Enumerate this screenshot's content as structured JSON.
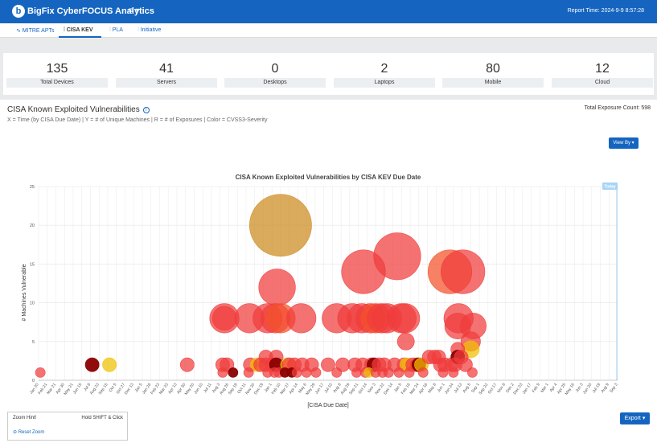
{
  "app": {
    "title": "BigFix CyberFOCUS Analytics",
    "logo_letter": "b",
    "menu_glyph": "≡ ▾",
    "report_time": "Report Time: 2024-9-9 8:57:28"
  },
  "tabs": [
    {
      "label": "∿ MITRE APTs",
      "active": false
    },
    {
      "label": "⫶ CISA KEV",
      "active": true
    },
    {
      "label": "⫶ PLA",
      "active": false
    },
    {
      "label": "⫶ Initiative",
      "active": false
    }
  ],
  "stats": [
    {
      "value": "135",
      "label": "Total Devices"
    },
    {
      "value": "41",
      "label": "Servers"
    },
    {
      "value": "0",
      "label": "Desktops"
    },
    {
      "value": "2",
      "label": "Laptops"
    },
    {
      "value": "80",
      "label": "Mobile"
    },
    {
      "value": "12",
      "label": "Cloud"
    }
  ],
  "panel": {
    "title": "CISA Known Exploited Vulnerabilities",
    "info_glyph": "i",
    "subtitle": "X = Time (by CISA Due Date) | Y = # of Unique Machines | R = # of Exposures | Color = CVSS3-Severity",
    "exposure_label": "Total Exposure Count:",
    "exposure_value": "598",
    "view_by": "View By ▾"
  },
  "zoom": {
    "title": "Zoom Hint!",
    "shift": "Hold SHIFT & Click",
    "reset": "⊖ Reset Zoom"
  },
  "export": "Export ▾",
  "chart_data": {
    "type": "scatter",
    "title": "CISA Known Exploited Vulnerabilities by CISA KEV Due Date",
    "xlabel": "[CISA Due Date]",
    "ylabel": "# Machines Vulnerable",
    "today_label": "Today",
    "ylim": [
      0,
      25
    ],
    "yticks": [
      0,
      5,
      10,
      15,
      20,
      25
    ],
    "grid": true,
    "categories": [
      "Jan 20",
      "Feb 21",
      "Mar 21",
      "Apr 30",
      "May 21",
      "Jun 15",
      "Jul 8",
      "Aug 23",
      "Sep 15",
      "Oct 5",
      "Oct 27",
      "Dec 13",
      "Jan 5",
      "Jan 26",
      "Feb 23",
      "Mar 23",
      "Apr 13",
      "Apr 30",
      "May 20",
      "Jun 10",
      "Jul 11",
      "Aug 3",
      "Aug 26",
      "Sep 18",
      "Oct 11",
      "Nov 20",
      "Dec 19",
      "Jan 1",
      "Feb 10",
      "Mar 27",
      "Apr 14",
      "May 6",
      "May 29",
      "Jun 17",
      "Jul 10",
      "Aug 8",
      "Aug 29",
      "Sep 21",
      "Oct 14",
      "Nov 3",
      "Nov 22",
      "Dec 14",
      "Jan 5",
      "Feb 16",
      "Mar 24",
      "Apr 16",
      "May 8",
      "Jun 1",
      "Jun 24",
      "Jul 13",
      "Aug 5",
      "Sep 1",
      "Sep 22",
      "Oct 17",
      "Nov 8",
      "Dec 2",
      "Dec 23",
      "Jan 17",
      "Feb 9",
      "Mar 1",
      "Apr 4",
      "Apr 25",
      "May 16",
      "Jun 3",
      "Jun 20",
      "Jul 19",
      "Aug 9",
      "Sep 3"
    ],
    "colors": {
      "critical": "#f03c3c",
      "critical_alt": "#f4502a",
      "high": "#cc8a1e",
      "medium": "#f0c000",
      "dark": "#8b0000"
    },
    "points": [
      {
        "x": 0.2,
        "y": 1,
        "r": 1,
        "c": "critical"
      },
      {
        "x": 6.2,
        "y": 2,
        "r": 2,
        "c": "dark"
      },
      {
        "x": 8.2,
        "y": 2,
        "r": 2,
        "c": "medium"
      },
      {
        "x": 17.2,
        "y": 2,
        "r": 2,
        "c": "critical"
      },
      {
        "x": 21.5,
        "y": 8,
        "r": 9,
        "c": "critical"
      },
      {
        "x": 21.5,
        "y": 8,
        "r": 6,
        "c": "critical"
      },
      {
        "x": 21.3,
        "y": 2,
        "r": 2,
        "c": "critical"
      },
      {
        "x": 21.8,
        "y": 2,
        "r": 2,
        "c": "critical"
      },
      {
        "x": 21.3,
        "y": 1,
        "r": 1,
        "c": "critical"
      },
      {
        "x": 22.5,
        "y": 1,
        "r": 1,
        "c": "dark"
      },
      {
        "x": 24.4,
        "y": 8,
        "r": 9,
        "c": "critical"
      },
      {
        "x": 24.5,
        "y": 2,
        "r": 2,
        "c": "critical"
      },
      {
        "x": 24.3,
        "y": 1,
        "r": 1,
        "c": "critical"
      },
      {
        "x": 25.3,
        "y": 2,
        "r": 2,
        "c": "medium"
      },
      {
        "x": 25.7,
        "y": 2,
        "r": 2,
        "c": "critical"
      },
      {
        "x": 26.5,
        "y": 8,
        "r": 9,
        "c": "critical"
      },
      {
        "x": 26.3,
        "y": 3,
        "r": 2,
        "c": "critical"
      },
      {
        "x": 26.3,
        "y": 2,
        "r": 2,
        "c": "critical"
      },
      {
        "x": 26.5,
        "y": 1,
        "r": 1,
        "c": "critical"
      },
      {
        "x": 27.0,
        "y": 2,
        "r": 2,
        "c": "critical"
      },
      {
        "x": 27.4,
        "y": 8,
        "r": 9,
        "c": "critical"
      },
      {
        "x": 27.6,
        "y": 12,
        "r": 14,
        "c": "critical"
      },
      {
        "x": 28.0,
        "y": 8,
        "r": 9,
        "c": "critical_alt"
      },
      {
        "x": 27.5,
        "y": 3,
        "r": 2,
        "c": "critical"
      },
      {
        "x": 27.5,
        "y": 2,
        "r": 2,
        "c": "dark"
      },
      {
        "x": 27.3,
        "y": 1,
        "r": 1,
        "c": "critical"
      },
      {
        "x": 27.8,
        "y": 1,
        "r": 1,
        "c": "critical"
      },
      {
        "x": 28.0,
        "y": 20,
        "r": 40,
        "c": "high"
      },
      {
        "x": 28.5,
        "y": 1,
        "r": 1,
        "c": "dark"
      },
      {
        "x": 28.8,
        "y": 2,
        "r": 2,
        "c": "medium"
      },
      {
        "x": 29.0,
        "y": 2,
        "r": 2,
        "c": "critical"
      },
      {
        "x": 29.3,
        "y": 1,
        "r": 1,
        "c": "dark"
      },
      {
        "x": 29.6,
        "y": 2,
        "r": 2,
        "c": "critical"
      },
      {
        "x": 29.9,
        "y": 1,
        "r": 1,
        "c": "critical"
      },
      {
        "x": 30.4,
        "y": 8,
        "r": 9,
        "c": "critical"
      },
      {
        "x": 30.5,
        "y": 2,
        "r": 2,
        "c": "critical"
      },
      {
        "x": 31.0,
        "y": 1,
        "r": 1,
        "c": "critical"
      },
      {
        "x": 31.6,
        "y": 2,
        "r": 2,
        "c": "critical"
      },
      {
        "x": 32.1,
        "y": 1,
        "r": 1,
        "c": "critical"
      },
      {
        "x": 33.5,
        "y": 2,
        "r": 2,
        "c": "critical"
      },
      {
        "x": 34.5,
        "y": 8,
        "r": 9,
        "c": "critical"
      },
      {
        "x": 34.5,
        "y": 1,
        "r": 1,
        "c": "critical"
      },
      {
        "x": 35.2,
        "y": 2,
        "r": 2,
        "c": "critical"
      },
      {
        "x": 36.3,
        "y": 8,
        "r": 9,
        "c": "critical"
      },
      {
        "x": 36.6,
        "y": 2,
        "r": 2,
        "c": "critical"
      },
      {
        "x": 36.8,
        "y": 1,
        "r": 1,
        "c": "critical"
      },
      {
        "x": 37.4,
        "y": 8,
        "r": 9,
        "c": "critical"
      },
      {
        "x": 37.6,
        "y": 14,
        "r": 20,
        "c": "critical"
      },
      {
        "x": 37.5,
        "y": 2,
        "r": 2,
        "c": "critical"
      },
      {
        "x": 37.8,
        "y": 1,
        "r": 1,
        "c": "critical"
      },
      {
        "x": 38.2,
        "y": 1,
        "r": 1,
        "c": "medium"
      },
      {
        "x": 38.4,
        "y": 8,
        "r": 9,
        "c": "critical"
      },
      {
        "x": 38.5,
        "y": 2,
        "r": 2,
        "c": "critical"
      },
      {
        "x": 38.8,
        "y": 2,
        "r": 2,
        "c": "dark"
      },
      {
        "x": 39.0,
        "y": 8,
        "r": 9,
        "c": "critical_alt"
      },
      {
        "x": 39.0,
        "y": 1,
        "r": 1,
        "c": "critical"
      },
      {
        "x": 39.4,
        "y": 2,
        "r": 2,
        "c": "critical"
      },
      {
        "x": 39.7,
        "y": 8,
        "r": 9,
        "c": "critical"
      },
      {
        "x": 39.8,
        "y": 1,
        "r": 1,
        "c": "critical"
      },
      {
        "x": 40.0,
        "y": 2,
        "r": 2,
        "c": "critical"
      },
      {
        "x": 40.3,
        "y": 8,
        "r": 9,
        "c": "critical"
      },
      {
        "x": 40.5,
        "y": 1,
        "r": 1,
        "c": "critical"
      },
      {
        "x": 41.2,
        "y": 2,
        "r": 2,
        "c": "critical"
      },
      {
        "x": 41.5,
        "y": 16,
        "r": 23,
        "c": "critical"
      },
      {
        "x": 41.7,
        "y": 1,
        "r": 1,
        "c": "critical"
      },
      {
        "x": 42.0,
        "y": 8,
        "r": 9,
        "c": "critical"
      },
      {
        "x": 42.4,
        "y": 8,
        "r": 9,
        "c": "critical"
      },
      {
        "x": 42.3,
        "y": 2,
        "r": 2,
        "c": "critical"
      },
      {
        "x": 42.5,
        "y": 5,
        "r": 3,
        "c": "critical"
      },
      {
        "x": 42.6,
        "y": 2,
        "r": 2,
        "c": "medium"
      },
      {
        "x": 42.9,
        "y": 1,
        "r": 1,
        "c": "critical"
      },
      {
        "x": 43.3,
        "y": 2,
        "r": 2,
        "c": "critical"
      },
      {
        "x": 43.8,
        "y": 2,
        "r": 2,
        "c": "critical"
      },
      {
        "x": 44.0,
        "y": 2,
        "r": 2,
        "c": "dark"
      },
      {
        "x": 44.3,
        "y": 2,
        "r": 2,
        "c": "medium"
      },
      {
        "x": 44.5,
        "y": 1,
        "r": 1,
        "c": "critical"
      },
      {
        "x": 45.2,
        "y": 3,
        "r": 2,
        "c": "critical"
      },
      {
        "x": 45.8,
        "y": 3,
        "r": 2,
        "c": "critical"
      },
      {
        "x": 46.3,
        "y": 3,
        "r": 2,
        "c": "critical"
      },
      {
        "x": 46.5,
        "y": 2,
        "r": 2,
        "c": "critical"
      },
      {
        "x": 46.8,
        "y": 1,
        "r": 1,
        "c": "critical"
      },
      {
        "x": 47.6,
        "y": 14,
        "r": 20,
        "c": "critical_alt"
      },
      {
        "x": 47.0,
        "y": 2,
        "r": 2,
        "c": "critical"
      },
      {
        "x": 47.8,
        "y": 2,
        "r": 2,
        "c": "critical"
      },
      {
        "x": 48.0,
        "y": 1,
        "r": 1,
        "c": "critical"
      },
      {
        "x": 48.6,
        "y": 8,
        "r": 9,
        "c": "critical"
      },
      {
        "x": 48.5,
        "y": 7,
        "r": 7,
        "c": "critical"
      },
      {
        "x": 48.5,
        "y": 4,
        "r": 2,
        "c": "critical"
      },
      {
        "x": 48.5,
        "y": 3,
        "r": 2,
        "c": "dark"
      },
      {
        "x": 48.2,
        "y": 2,
        "r": 2,
        "c": "critical"
      },
      {
        "x": 48.9,
        "y": 3,
        "r": 2,
        "c": "critical"
      },
      {
        "x": 49.1,
        "y": 14,
        "r": 20,
        "c": "critical"
      },
      {
        "x": 49.4,
        "y": 2,
        "r": 2,
        "c": "critical"
      },
      {
        "x": 50.3,
        "y": 7,
        "r": 7,
        "c": "critical"
      },
      {
        "x": 50.0,
        "y": 5,
        "r": 4,
        "c": "critical"
      },
      {
        "x": 50.0,
        "y": 4,
        "r": 3,
        "c": "medium"
      },
      {
        "x": 50.2,
        "y": 1,
        "r": 1,
        "c": "critical"
      }
    ]
  }
}
